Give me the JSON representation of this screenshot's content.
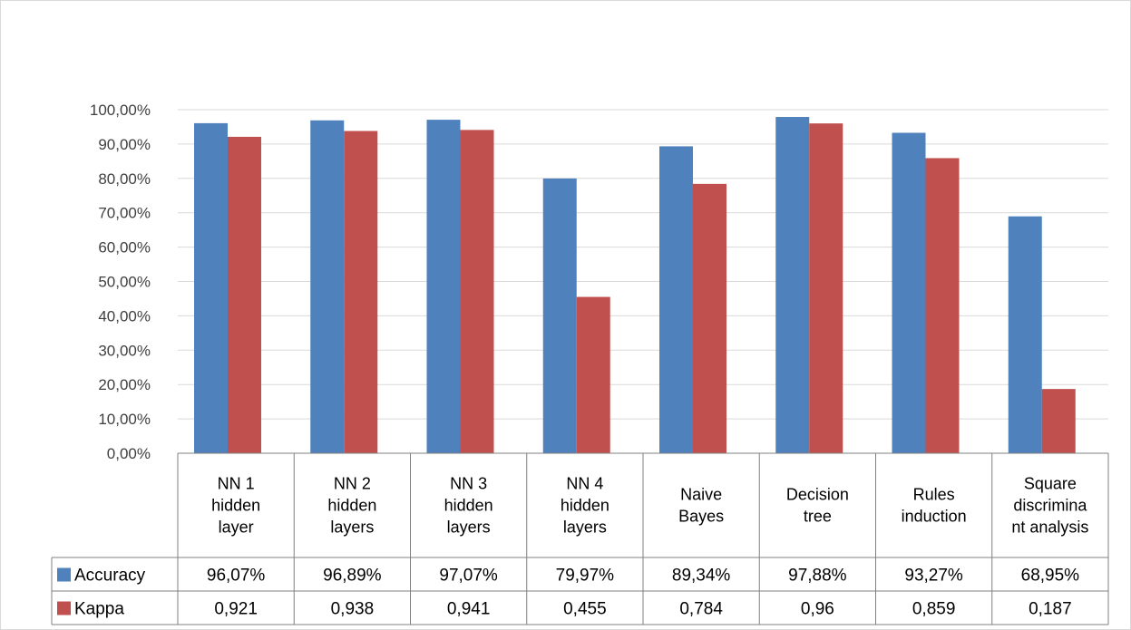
{
  "chart_data": {
    "type": "bar",
    "categories": [
      [
        "NN 1",
        "hidden",
        "layer"
      ],
      [
        "NN 2",
        "hidden",
        "layers"
      ],
      [
        "NN 3",
        "hidden",
        "layers"
      ],
      [
        "NN 4",
        "hidden",
        "layers"
      ],
      [
        "Naive",
        "Bayes"
      ],
      [
        "Decision",
        "tree"
      ],
      [
        "Rules",
        "induction"
      ],
      [
        "Square",
        "discrimina",
        "nt analysis"
      ]
    ],
    "series": [
      {
        "name": "Accuracy",
        "color": "#4f81bd",
        "values": [
          0.9607,
          0.9689,
          0.9707,
          0.7997,
          0.8934,
          0.9788,
          0.9327,
          0.6895
        ],
        "table_labels": [
          "96,07%",
          "96,89%",
          "97,07%",
          "79,97%",
          "89,34%",
          "97,88%",
          "93,27%",
          "68,95%"
        ]
      },
      {
        "name": "Kappa",
        "color": "#c0504d",
        "values": [
          0.921,
          0.938,
          0.941,
          0.455,
          0.784,
          0.96,
          0.859,
          0.187
        ],
        "table_labels": [
          "0,921",
          "0,938",
          "0,941",
          "0,455",
          "0,784",
          "0,96",
          "0,859",
          "0,187"
        ]
      }
    ],
    "ylim": [
      0,
      1
    ],
    "y_ticks": [
      "0,00%",
      "10,00%",
      "20,00%",
      "30,00%",
      "40,00%",
      "50,00%",
      "60,00%",
      "70,00%",
      "80,00%",
      "90,00%",
      "100,00%"
    ],
    "grid": true,
    "legend": "data-table"
  }
}
